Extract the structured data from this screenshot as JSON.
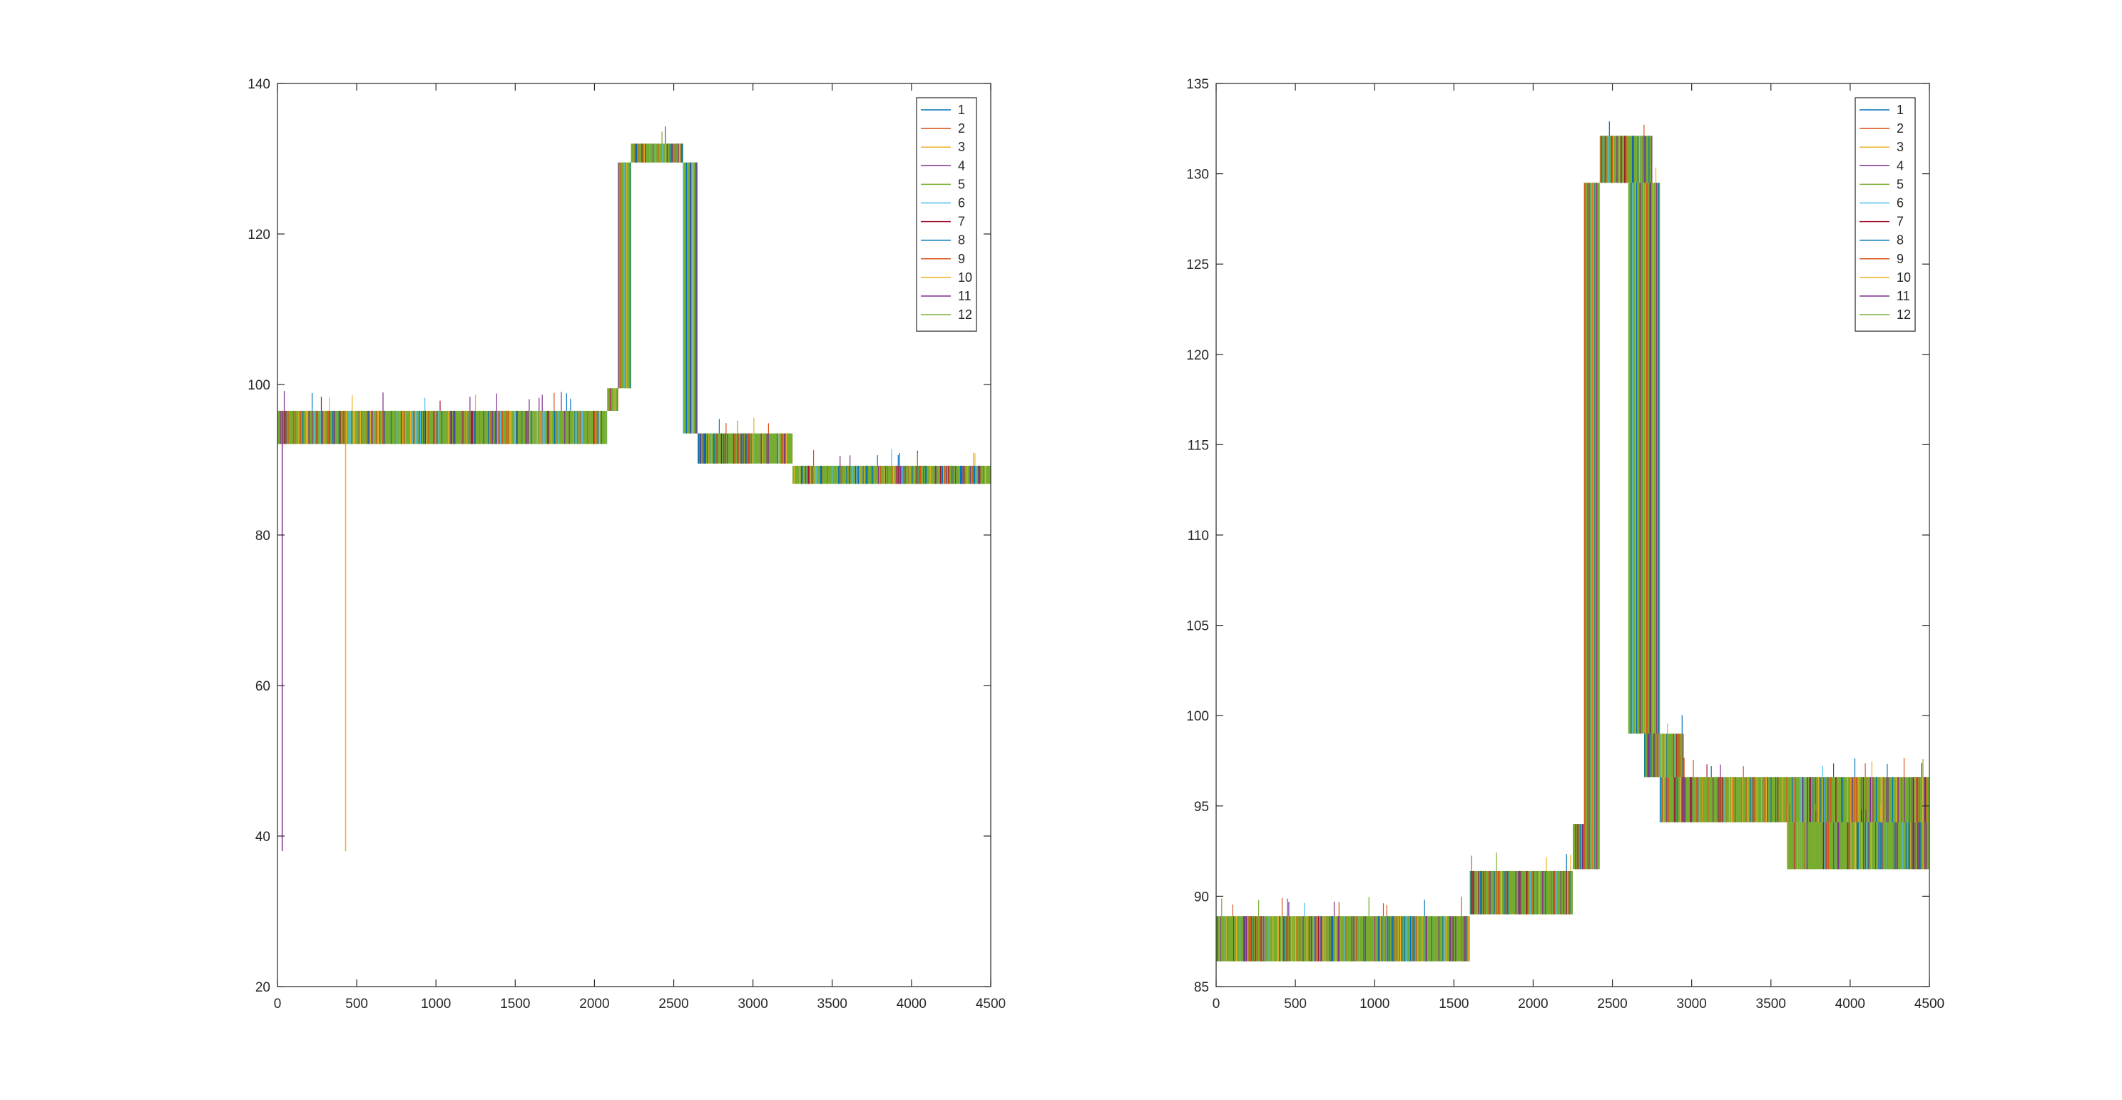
{
  "chart_data": [
    {
      "type": "line",
      "title": "",
      "xlabel": "",
      "ylabel": "",
      "xlim": [
        0,
        4500
      ],
      "ylim": [
        20,
        140
      ],
      "xticks": [
        0,
        500,
        1000,
        1500,
        2000,
        2500,
        3000,
        3500,
        4000,
        4500
      ],
      "yticks": [
        20,
        40,
        60,
        80,
        100,
        120,
        140
      ],
      "grid": false,
      "legend_position": "top-right",
      "series_count": 12,
      "note_structure": "12 overlapping noisy stepped traces sampled densely over x",
      "level_segments": [
        {
          "x": [
            0,
            2080
          ],
          "y_band": [
            92.1,
            96.5
          ]
        },
        {
          "x": [
            2080,
            2150
          ],
          "y_band": [
            96.5,
            99.5
          ]
        },
        {
          "x": [
            2150,
            2230
          ],
          "y_band": [
            99.5,
            129.5
          ]
        },
        {
          "x": [
            2230,
            2560
          ],
          "y_band": [
            129.5,
            132
          ]
        },
        {
          "x": [
            2560,
            2650
          ],
          "y_band": [
            93.5,
            129.5
          ]
        },
        {
          "x": [
            2650,
            3250
          ],
          "y_band": [
            89.5,
            93.5
          ]
        },
        {
          "x": [
            3250,
            4500
          ],
          "y_band": [
            86.8,
            89.2
          ]
        }
      ],
      "outliers": [
        {
          "x": 30,
          "y": 38
        },
        {
          "x": 430,
          "y": 38
        }
      ]
    },
    {
      "type": "line",
      "title": "",
      "xlabel": "",
      "ylabel": "",
      "xlim": [
        0,
        4500
      ],
      "ylim": [
        85,
        135
      ],
      "xticks": [
        0,
        500,
        1000,
        1500,
        2000,
        2500,
        3000,
        3500,
        4000,
        4500
      ],
      "yticks": [
        85,
        90,
        95,
        100,
        105,
        110,
        115,
        120,
        125,
        130,
        135
      ],
      "grid": false,
      "legend_position": "top-right",
      "series_count": 12,
      "note_structure": "12 overlapping noisy stepped traces sampled densely over x",
      "level_segments": [
        {
          "x": [
            0,
            1600
          ],
          "y_band": [
            86.4,
            88.9
          ]
        },
        {
          "x": [
            1600,
            2250
          ],
          "y_band": [
            89.0,
            91.4
          ]
        },
        {
          "x": [
            2250,
            2320
          ],
          "y_band": [
            91.5,
            94.0
          ]
        },
        {
          "x": [
            2320,
            2420
          ],
          "y_band": [
            91.5,
            129.5
          ]
        },
        {
          "x": [
            2420,
            2750
          ],
          "y_band": [
            129.5,
            132.1
          ]
        },
        {
          "x": [
            2600,
            2800
          ],
          "y_band": [
            99.0,
            129.5
          ]
        },
        {
          "x": [
            2700,
            2950
          ],
          "y_band": [
            96.6,
            99.0
          ]
        },
        {
          "x": [
            2800,
            4500
          ],
          "y_band": [
            94.1,
            96.6
          ]
        },
        {
          "x": [
            3600,
            4500
          ],
          "y_band": [
            91.5,
            94.1
          ]
        }
      ]
    }
  ],
  "legend": {
    "entries": [
      "1",
      "2",
      "3",
      "4",
      "5",
      "6",
      "7",
      "8",
      "9",
      "10",
      "11",
      "12"
    ],
    "colors": [
      "#0072bd",
      "#d95319",
      "#edb120",
      "#7e2f8e",
      "#77ac30",
      "#4dbeee",
      "#a2142f",
      "#0072bd",
      "#d95319",
      "#edb120",
      "#7e2f8e",
      "#77ac30"
    ]
  },
  "colors": {
    "axis": "#262626",
    "background": "#ffffff",
    "dominant_series": "#77ac30"
  }
}
